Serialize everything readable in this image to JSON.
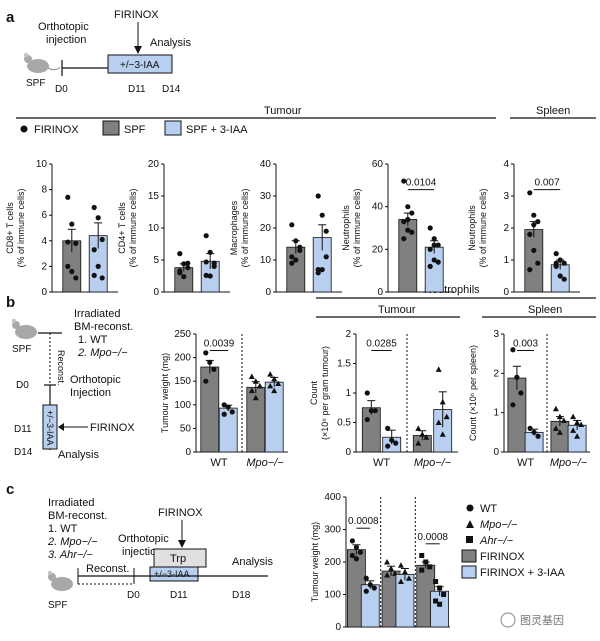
{
  "colors": {
    "spf": "#808080",
    "iaa": "#b9cff0",
    "dot": "#111111"
  },
  "panel_a": {
    "label": "a",
    "timeline": {
      "mouse": "SPF",
      "injection": "Orthotopic\ninjection",
      "firinox": "FIRINOX",
      "treatment": "+/−3-IAA",
      "analysis": "Analysis",
      "ticks": [
        "D0",
        "D11",
        "D14"
      ]
    },
    "section_tumour": "Tumour",
    "section_spleen": "Spleen",
    "legend": {
      "firinox": "FIRINOX",
      "spf": "SPF",
      "spf_iaa": "SPF + 3-IAA"
    }
  },
  "panel_b": {
    "label": "b",
    "timeline": {
      "mouse": "SPF",
      "irradiated": "Irradiated\nBM-reconst.",
      "opt1": "1. WT",
      "opt2": "2. Mpo−/−",
      "reconst": "Reconst.",
      "d0": "D0",
      "orthotopic": "Orthotopic\nInjection",
      "d11": "D11",
      "treatment": "+/−3-IAA",
      "firinox": "FIRINOX",
      "d14": "D14",
      "analysis": "Analysis"
    },
    "neutrophils_header": "Neutrophils",
    "tumour_header": "Tumour",
    "spleen_header": "Spleen"
  },
  "panel_c": {
    "label": "c",
    "timeline": {
      "mouse": "SPF",
      "irradiated": "Irradiated\nBM-reconst.",
      "opt1": "1. WT",
      "opt2": "2. Mpo−/−",
      "opt3": "3. Ahr−/−",
      "reconst": "Reconst.",
      "orthotopic": "Orthotopic\ninjection",
      "firinox": "FIRINOX",
      "trp": "Trp",
      "treatment": "+/−3-IAA",
      "analysis": "Analysis",
      "ticks": [
        "D0",
        "D11",
        "D18"
      ]
    },
    "legend": {
      "wt": "WT",
      "mpo": "Mpo−/−",
      "ahr": "Ahr−/−",
      "firinox": "FIRINOX",
      "firinox_iaa": "FIRINOX + 3-IAA"
    }
  },
  "watermark": "图灵基因",
  "chart_data": [
    {
      "id": "a-cd8",
      "type": "bar",
      "ylabel": "CD8+ T cells\n(% of immune cells)",
      "ylim": [
        0,
        10
      ],
      "yticks": [
        0,
        2,
        4,
        6,
        8,
        10
      ],
      "categories": [
        "SPF",
        "SPF + 3-IAA"
      ],
      "values": [
        4.0,
        4.4
      ],
      "err": [
        0.9,
        1.0
      ],
      "points": [
        [
          7.4,
          5.3,
          3.8,
          2.0,
          1.6,
          1.1,
          3.9
        ],
        [
          6.6,
          5.8,
          4.1,
          3.3,
          2.0,
          1.1,
          1.3
        ]
      ]
    },
    {
      "id": "a-cd4",
      "type": "bar",
      "ylabel": "CD4+ T cells\n(% of immune cells)",
      "ylim": [
        0,
        20
      ],
      "yticks": [
        0,
        5,
        10,
        15,
        20
      ],
      "categories": [
        "SPF",
        "SPF + 3-IAA"
      ],
      "values": [
        3.8,
        4.8
      ],
      "err": [
        0.6,
        1.2
      ],
      "points": [
        [
          6.0,
          4.4,
          3.8,
          3.0,
          2.4,
          4.5,
          3.3
        ],
        [
          8.8,
          6.2,
          4.5,
          2.6,
          2.5,
          4.0,
          4.7
        ]
      ]
    },
    {
      "id": "a-mac",
      "type": "bar",
      "ylabel": "Macrophages\n(% of immune cells)",
      "ylim": [
        0,
        40
      ],
      "yticks": [
        0,
        10,
        20,
        30,
        40
      ],
      "categories": [
        "SPF",
        "SPF + 3-IAA"
      ],
      "values": [
        14,
        17
      ],
      "err": [
        2,
        4
      ],
      "points": [
        [
          21,
          16,
          13,
          11,
          10,
          14,
          9
        ],
        [
          30,
          24,
          11,
          7,
          7,
          19,
          6
        ]
      ]
    },
    {
      "id": "a-neu-t",
      "type": "bar",
      "ylabel": "Neutrophils\n(% of immune cells)",
      "ylim": [
        0,
        60
      ],
      "yticks": [
        0,
        20,
        40,
        60
      ],
      "categories": [
        "SPF",
        "SPF + 3-IAA"
      ],
      "values": [
        34,
        21
      ],
      "err": [
        3,
        3
      ],
      "pvalue": "0.0104",
      "points": [
        [
          52,
          40,
          37,
          33,
          29,
          28,
          25,
          34
        ],
        [
          30,
          25,
          22,
          20,
          15,
          14,
          12,
          22
        ]
      ]
    },
    {
      "id": "a-neu-s",
      "type": "bar",
      "ylabel": "Neutrophils\n(% of immune cells)",
      "ylim": [
        0,
        4
      ],
      "yticks": [
        0,
        1,
        2,
        3,
        4
      ],
      "categories": [
        "SPF",
        "SPF + 3-IAA"
      ],
      "values": [
        1.95,
        0.85
      ],
      "err": [
        0.25,
        0.15
      ],
      "pvalue": "0.007",
      "points": [
        [
          3.1,
          2.4,
          2.2,
          1.8,
          1.3,
          0.9,
          0.7,
          2.1
        ],
        [
          1.2,
          1.0,
          0.9,
          0.8,
          0.5,
          0.4,
          0.9
        ]
      ]
    },
    {
      "id": "b-weight",
      "type": "bar",
      "ylabel": "Tumour weight (mg)",
      "ylim": [
        0,
        250
      ],
      "yticks": [
        0,
        50,
        100,
        150,
        200,
        250
      ],
      "groups": [
        "WT",
        "Mpo−/−"
      ],
      "values": [
        [
          180,
          93
        ],
        [
          137,
          148
        ]
      ],
      "err": [
        [
          14,
          6
        ],
        [
          12,
          10
        ]
      ],
      "pvalue": "0.0039",
      "points": [
        [
          [
            210,
            190,
            175,
            150
          ],
          [
            100,
            95,
            85,
            80
          ]
        ],
        [
          [
            160,
            150,
            140,
            130,
            115
          ],
          [
            165,
            155,
            145,
            140,
            130
          ]
        ]
      ]
    },
    {
      "id": "b-count-t",
      "type": "bar",
      "ylabel": "Count\n(×10⁶ per gram tumour)",
      "ylim": [
        0,
        2.0
      ],
      "yticks": [
        0,
        0.5,
        1.0,
        1.5,
        2.0
      ],
      "groups": [
        "WT",
        "Mpo−/−"
      ],
      "values": [
        [
          0.75,
          0.25
        ],
        [
          0.28,
          0.72
        ]
      ],
      "err": [
        [
          0.12,
          0.12
        ],
        [
          0.08,
          0.3
        ]
      ],
      "pvalue": "0.0285",
      "points": [
        [
          [
            1.0,
            0.7,
            0.7,
            0.55
          ],
          [
            0.4,
            0.2,
            0.15,
            0.1
          ]
        ],
        [
          [
            0.4,
            0.3,
            0.25,
            0.15
          ],
          [
            1.4,
            0.85,
            0.6,
            0.5,
            0.3
          ]
        ]
      ]
    },
    {
      "id": "b-count-s",
      "type": "bar",
      "ylabel": "Count (×10⁶ per spleen)",
      "ylim": [
        0,
        3
      ],
      "yticks": [
        0,
        1,
        2,
        3
      ],
      "groups": [
        "WT",
        "Mpo−/−"
      ],
      "values": [
        [
          1.88,
          0.5
        ],
        [
          0.78,
          0.68
        ]
      ],
      "err": [
        [
          0.3,
          0.08
        ],
        [
          0.12,
          0.12
        ]
      ],
      "pvalue": "0.003",
      "points": [
        [
          [
            2.6,
            1.9,
            1.5,
            1.2
          ],
          [
            0.6,
            0.5,
            0.4
          ]
        ],
        [
          [
            1.1,
            0.9,
            0.8,
            0.6,
            0.5
          ],
          [
            0.9,
            0.75,
            0.7,
            0.55,
            0.4
          ]
        ]
      ]
    },
    {
      "id": "c-weight",
      "type": "bar",
      "ylabel": "Tumour weight (mg)",
      "ylim": [
        0,
        400
      ],
      "yticks": [
        0,
        100,
        200,
        300,
        400
      ],
      "groups": [
        "WT",
        "Mpo−/−",
        "Ahr−/−"
      ],
      "values": [
        [
          238,
          130
        ],
        [
          172,
          162
        ],
        [
          190,
          110
        ]
      ],
      "err": [
        [
          15,
          12
        ],
        [
          15,
          18
        ],
        [
          10,
          14
        ]
      ],
      "pvalues": [
        "0.0008",
        "0.0008"
      ],
      "points": [
        [
          [
            265,
            245,
            230,
            220,
            210
          ],
          [
            150,
            130,
            120,
            110
          ]
        ],
        [
          [
            200,
            180,
            165,
            160
          ],
          [
            190,
            170,
            150,
            140
          ]
        ],
        [
          [
            220,
            200,
            185,
            175
          ],
          [
            140,
            120,
            100,
            80,
            70
          ]
        ]
      ]
    }
  ]
}
